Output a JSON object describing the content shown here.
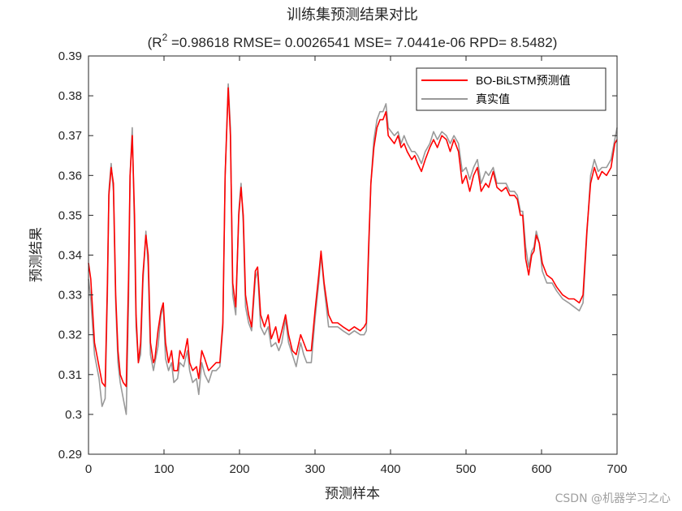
{
  "chart_data": {
    "type": "line",
    "title": "训练集预测结果对比",
    "metrics": {
      "r2_prefix": "(R",
      "r2_sup": "2",
      "r2_rest": " =0.98618 RMSE= 0.0026541 MSE= 7.0441e-06 RPD= 8.5482)"
    },
    "xlabel": "预测样本",
    "ylabel": "预测结果",
    "xlim": [
      0,
      700
    ],
    "ylim": [
      0.29,
      0.39
    ],
    "xticks": [
      "0",
      "100",
      "200",
      "300",
      "400",
      "500",
      "600",
      "700"
    ],
    "yticks": [
      "0.29",
      "0.3",
      "0.31",
      "0.32",
      "0.33",
      "0.34",
      "0.35",
      "0.36",
      "0.37",
      "0.38",
      "0.39"
    ],
    "grid": false,
    "legend_position": "top-right",
    "series": [
      {
        "name": "BO-BiLSTM预测值",
        "color": "#ff0000",
        "points": [
          [
            0,
            0.338
          ],
          [
            3,
            0.334
          ],
          [
            8,
            0.318
          ],
          [
            14,
            0.312
          ],
          [
            18,
            0.308
          ],
          [
            22,
            0.307
          ],
          [
            25,
            0.333
          ],
          [
            27,
            0.355
          ],
          [
            30,
            0.362
          ],
          [
            33,
            0.358
          ],
          [
            36,
            0.33
          ],
          [
            39,
            0.316
          ],
          [
            42,
            0.31
          ],
          [
            46,
            0.308
          ],
          [
            50,
            0.307
          ],
          [
            53,
            0.334
          ],
          [
            55,
            0.36
          ],
          [
            58,
            0.37
          ],
          [
            61,
            0.35
          ],
          [
            63,
            0.325
          ],
          [
            66,
            0.313
          ],
          [
            69,
            0.318
          ],
          [
            72,
            0.335
          ],
          [
            76,
            0.345
          ],
          [
            79,
            0.34
          ],
          [
            82,
            0.318
          ],
          [
            86,
            0.313
          ],
          [
            88,
            0.314
          ],
          [
            92,
            0.321
          ],
          [
            96,
            0.326
          ],
          [
            99,
            0.328
          ],
          [
            102,
            0.318
          ],
          [
            106,
            0.313
          ],
          [
            110,
            0.316
          ],
          [
            113,
            0.311
          ],
          [
            118,
            0.311
          ],
          [
            121,
            0.316
          ],
          [
            126,
            0.314
          ],
          [
            131,
            0.319
          ],
          [
            134,
            0.313
          ],
          [
            138,
            0.311
          ],
          [
            143,
            0.312
          ],
          [
            146,
            0.309
          ],
          [
            150,
            0.316
          ],
          [
            154,
            0.314
          ],
          [
            159,
            0.311
          ],
          [
            164,
            0.312
          ],
          [
            169,
            0.313
          ],
          [
            174,
            0.313
          ],
          [
            178,
            0.323
          ],
          [
            181,
            0.36
          ],
          [
            185,
            0.382
          ],
          [
            188,
            0.37
          ],
          [
            191,
            0.333
          ],
          [
            195,
            0.327
          ],
          [
            199,
            0.35
          ],
          [
            202,
            0.357
          ],
          [
            205,
            0.35
          ],
          [
            208,
            0.33
          ],
          [
            212,
            0.325
          ],
          [
            216,
            0.322
          ],
          [
            221,
            0.336
          ],
          [
            224,
            0.337
          ],
          [
            228,
            0.325
          ],
          [
            233,
            0.322
          ],
          [
            238,
            0.325
          ],
          [
            242,
            0.319
          ],
          [
            248,
            0.322
          ],
          [
            252,
            0.318
          ],
          [
            256,
            0.321
          ],
          [
            261,
            0.325
          ],
          [
            265,
            0.32
          ],
          [
            270,
            0.316
          ],
          [
            275,
            0.315
          ],
          [
            281,
            0.32
          ],
          [
            285,
            0.318
          ],
          [
            289,
            0.316
          ],
          [
            295,
            0.316
          ],
          [
            300,
            0.326
          ],
          [
            305,
            0.335
          ],
          [
            308,
            0.341
          ],
          [
            312,
            0.333
          ],
          [
            318,
            0.325
          ],
          [
            323,
            0.323
          ],
          [
            330,
            0.323
          ],
          [
            337,
            0.322
          ],
          [
            345,
            0.321
          ],
          [
            352,
            0.322
          ],
          [
            360,
            0.321
          ],
          [
            365,
            0.322
          ],
          [
            368,
            0.323
          ],
          [
            371,
            0.342
          ],
          [
            374,
            0.358
          ],
          [
            378,
            0.367
          ],
          [
            382,
            0.372
          ],
          [
            386,
            0.374
          ],
          [
            390,
            0.374
          ],
          [
            394,
            0.376
          ],
          [
            397,
            0.37
          ],
          [
            401,
            0.369
          ],
          [
            405,
            0.368
          ],
          [
            410,
            0.37
          ],
          [
            414,
            0.367
          ],
          [
            418,
            0.368
          ],
          [
            422,
            0.366
          ],
          [
            428,
            0.364
          ],
          [
            432,
            0.365
          ],
          [
            436,
            0.363
          ],
          [
            441,
            0.361
          ],
          [
            446,
            0.364
          ],
          [
            452,
            0.367
          ],
          [
            457,
            0.369
          ],
          [
            462,
            0.367
          ],
          [
            468,
            0.37
          ],
          [
            474,
            0.369
          ],
          [
            479,
            0.366
          ],
          [
            484,
            0.369
          ],
          [
            490,
            0.366
          ],
          [
            495,
            0.358
          ],
          [
            500,
            0.36
          ],
          [
            505,
            0.356
          ],
          [
            510,
            0.36
          ],
          [
            515,
            0.362
          ],
          [
            520,
            0.356
          ],
          [
            526,
            0.358
          ],
          [
            530,
            0.357
          ],
          [
            536,
            0.361
          ],
          [
            541,
            0.357
          ],
          [
            547,
            0.356
          ],
          [
            553,
            0.357
          ],
          [
            558,
            0.355
          ],
          [
            564,
            0.355
          ],
          [
            568,
            0.354
          ],
          [
            572,
            0.35
          ],
          [
            575,
            0.35
          ],
          [
            579,
            0.339
          ],
          [
            583,
            0.335
          ],
          [
            587,
            0.34
          ],
          [
            590,
            0.341
          ],
          [
            593,
            0.345
          ],
          [
            597,
            0.343
          ],
          [
            601,
            0.338
          ],
          [
            607,
            0.335
          ],
          [
            614,
            0.334
          ],
          [
            620,
            0.332
          ],
          [
            628,
            0.33
          ],
          [
            636,
            0.329
          ],
          [
            643,
            0.329
          ],
          [
            650,
            0.328
          ],
          [
            655,
            0.33
          ],
          [
            660,
            0.346
          ],
          [
            665,
            0.358
          ],
          [
            670,
            0.362
          ],
          [
            675,
            0.359
          ],
          [
            680,
            0.361
          ],
          [
            686,
            0.36
          ],
          [
            692,
            0.362
          ],
          [
            697,
            0.368
          ],
          [
            700,
            0.369
          ]
        ]
      },
      {
        "name": "真实值",
        "color": "#999999",
        "points": [
          [
            0,
            0.334
          ],
          [
            3,
            0.329
          ],
          [
            8,
            0.315
          ],
          [
            14,
            0.309
          ],
          [
            18,
            0.302
          ],
          [
            22,
            0.304
          ],
          [
            25,
            0.33
          ],
          [
            27,
            0.356
          ],
          [
            30,
            0.363
          ],
          [
            33,
            0.356
          ],
          [
            36,
            0.328
          ],
          [
            39,
            0.313
          ],
          [
            42,
            0.308
          ],
          [
            46,
            0.304
          ],
          [
            50,
            0.3
          ],
          [
            53,
            0.328
          ],
          [
            55,
            0.36
          ],
          [
            58,
            0.372
          ],
          [
            61,
            0.346
          ],
          [
            63,
            0.322
          ],
          [
            66,
            0.313
          ],
          [
            69,
            0.315
          ],
          [
            72,
            0.333
          ],
          [
            76,
            0.346
          ],
          [
            79,
            0.337
          ],
          [
            82,
            0.315
          ],
          [
            86,
            0.311
          ],
          [
            88,
            0.313
          ],
          [
            92,
            0.317
          ],
          [
            96,
            0.325
          ],
          [
            99,
            0.327
          ],
          [
            102,
            0.314
          ],
          [
            106,
            0.311
          ],
          [
            110,
            0.313
          ],
          [
            113,
            0.308
          ],
          [
            118,
            0.309
          ],
          [
            121,
            0.313
          ],
          [
            126,
            0.312
          ],
          [
            131,
            0.316
          ],
          [
            134,
            0.311
          ],
          [
            138,
            0.308
          ],
          [
            143,
            0.309
          ],
          [
            146,
            0.305
          ],
          [
            150,
            0.313
          ],
          [
            154,
            0.31
          ],
          [
            159,
            0.308
          ],
          [
            164,
            0.311
          ],
          [
            169,
            0.311
          ],
          [
            174,
            0.312
          ],
          [
            178,
            0.322
          ],
          [
            181,
            0.36
          ],
          [
            185,
            0.383
          ],
          [
            188,
            0.372
          ],
          [
            191,
            0.33
          ],
          [
            195,
            0.325
          ],
          [
            199,
            0.351
          ],
          [
            202,
            0.358
          ],
          [
            205,
            0.348
          ],
          [
            208,
            0.327
          ],
          [
            212,
            0.323
          ],
          [
            216,
            0.321
          ],
          [
            221,
            0.334
          ],
          [
            224,
            0.336
          ],
          [
            228,
            0.322
          ],
          [
            233,
            0.32
          ],
          [
            238,
            0.322
          ],
          [
            242,
            0.317
          ],
          [
            248,
            0.318
          ],
          [
            252,
            0.316
          ],
          [
            256,
            0.318
          ],
          [
            261,
            0.324
          ],
          [
            265,
            0.318
          ],
          [
            270,
            0.315
          ],
          [
            275,
            0.312
          ],
          [
            281,
            0.318
          ],
          [
            285,
            0.315
          ],
          [
            289,
            0.313
          ],
          [
            295,
            0.313
          ],
          [
            300,
            0.324
          ],
          [
            305,
            0.333
          ],
          [
            308,
            0.34
          ],
          [
            312,
            0.332
          ],
          [
            318,
            0.322
          ],
          [
            323,
            0.322
          ],
          [
            330,
            0.322
          ],
          [
            337,
            0.321
          ],
          [
            345,
            0.32
          ],
          [
            352,
            0.321
          ],
          [
            360,
            0.32
          ],
          [
            365,
            0.32
          ],
          [
            368,
            0.321
          ],
          [
            371,
            0.34
          ],
          [
            374,
            0.358
          ],
          [
            378,
            0.369
          ],
          [
            382,
            0.374
          ],
          [
            386,
            0.376
          ],
          [
            390,
            0.376
          ],
          [
            394,
            0.378
          ],
          [
            397,
            0.372
          ],
          [
            401,
            0.371
          ],
          [
            405,
            0.37
          ],
          [
            410,
            0.371
          ],
          [
            414,
            0.368
          ],
          [
            418,
            0.37
          ],
          [
            422,
            0.368
          ],
          [
            428,
            0.366
          ],
          [
            432,
            0.366
          ],
          [
            436,
            0.365
          ],
          [
            441,
            0.363
          ],
          [
            446,
            0.366
          ],
          [
            452,
            0.368
          ],
          [
            457,
            0.371
          ],
          [
            462,
            0.369
          ],
          [
            468,
            0.371
          ],
          [
            474,
            0.37
          ],
          [
            479,
            0.368
          ],
          [
            484,
            0.37
          ],
          [
            490,
            0.368
          ],
          [
            495,
            0.361
          ],
          [
            500,
            0.362
          ],
          [
            505,
            0.359
          ],
          [
            510,
            0.362
          ],
          [
            515,
            0.364
          ],
          [
            520,
            0.358
          ],
          [
            526,
            0.361
          ],
          [
            530,
            0.36
          ],
          [
            536,
            0.362
          ],
          [
            541,
            0.358
          ],
          [
            547,
            0.358
          ],
          [
            553,
            0.358
          ],
          [
            558,
            0.356
          ],
          [
            564,
            0.356
          ],
          [
            568,
            0.355
          ],
          [
            572,
            0.351
          ],
          [
            575,
            0.351
          ],
          [
            579,
            0.342
          ],
          [
            583,
            0.337
          ],
          [
            587,
            0.341
          ],
          [
            590,
            0.342
          ],
          [
            593,
            0.346
          ],
          [
            597,
            0.343
          ],
          [
            601,
            0.336
          ],
          [
            607,
            0.333
          ],
          [
            614,
            0.333
          ],
          [
            620,
            0.331
          ],
          [
            628,
            0.329
          ],
          [
            636,
            0.328
          ],
          [
            643,
            0.327
          ],
          [
            650,
            0.326
          ],
          [
            655,
            0.328
          ],
          [
            660,
            0.345
          ],
          [
            665,
            0.36
          ],
          [
            670,
            0.364
          ],
          [
            675,
            0.361
          ],
          [
            680,
            0.362
          ],
          [
            686,
            0.362
          ],
          [
            692,
            0.364
          ],
          [
            697,
            0.369
          ],
          [
            700,
            0.372
          ]
        ]
      }
    ]
  },
  "watermark": "CSDN @机器学习之心"
}
